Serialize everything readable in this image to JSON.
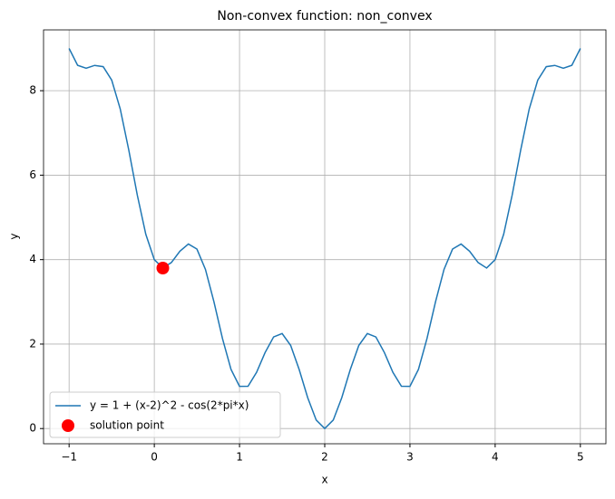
{
  "chart_data": {
    "type": "line",
    "title": "Non-convex function: non_convex",
    "x_label": "x",
    "y_label": "y",
    "xlim": [
      -1.3,
      5.3
    ],
    "ylim": [
      -0.36,
      9.44
    ],
    "xticks": [
      {
        "value": -1,
        "label": "−1"
      },
      0,
      1,
      2,
      3,
      4,
      5
    ],
    "yticks": [
      0,
      2,
      4,
      6,
      8
    ],
    "grid": true,
    "legend": "lower left",
    "series": [
      {
        "name": "y = 1 + (x-2)^2 - cos(2*pi*x)",
        "color": "#1f77b4",
        "x": [
          -1,
          -0.9,
          -0.8,
          -0.7,
          -0.6,
          -0.5,
          -0.4,
          -0.3,
          -0.2,
          -0.1,
          0,
          0.1,
          0.2,
          0.3,
          0.4,
          0.5,
          0.6,
          0.7,
          0.8,
          0.9,
          1,
          1.1,
          1.2,
          1.3,
          1.4,
          1.5,
          1.6,
          1.7,
          1.8,
          1.9,
          2,
          2.1,
          2.2,
          2.3,
          2.4,
          2.5,
          2.6,
          2.7,
          2.8,
          2.9,
          3,
          3.1,
          3.2,
          3.3,
          3.4,
          3.5,
          3.6,
          3.7,
          3.8,
          3.9,
          4,
          4.1,
          4.2,
          4.3,
          4.4,
          4.5,
          4.6,
          4.7,
          4.8,
          4.9,
          5
        ],
        "values": [
          9,
          8.601,
          8.531,
          8.599,
          8.569,
          8.25,
          7.569,
          6.599,
          5.531,
          4.601,
          4,
          3.801,
          3.931,
          4.199,
          4.369,
          4.25,
          3.769,
          2.999,
          2.131,
          1.401,
          1,
          1.001,
          1.331,
          1.799,
          2.169,
          2.25,
          1.969,
          1.399,
          0.731,
          0.201,
          0,
          0.201,
          0.731,
          1.399,
          1.969,
          2.25,
          2.169,
          1.799,
          1.331,
          1.001,
          1,
          1.401,
          2.131,
          2.999,
          3.769,
          4.25,
          4.369,
          4.199,
          3.931,
          3.801,
          4,
          4.601,
          5.531,
          6.599,
          7.569,
          8.25,
          8.569,
          8.599,
          8.531,
          8.601,
          9
        ]
      },
      {
        "name": "solution point",
        "color": "#ff0000",
        "type": "scatter",
        "x": [
          0.1
        ],
        "values": [
          3.8
        ]
      }
    ]
  }
}
